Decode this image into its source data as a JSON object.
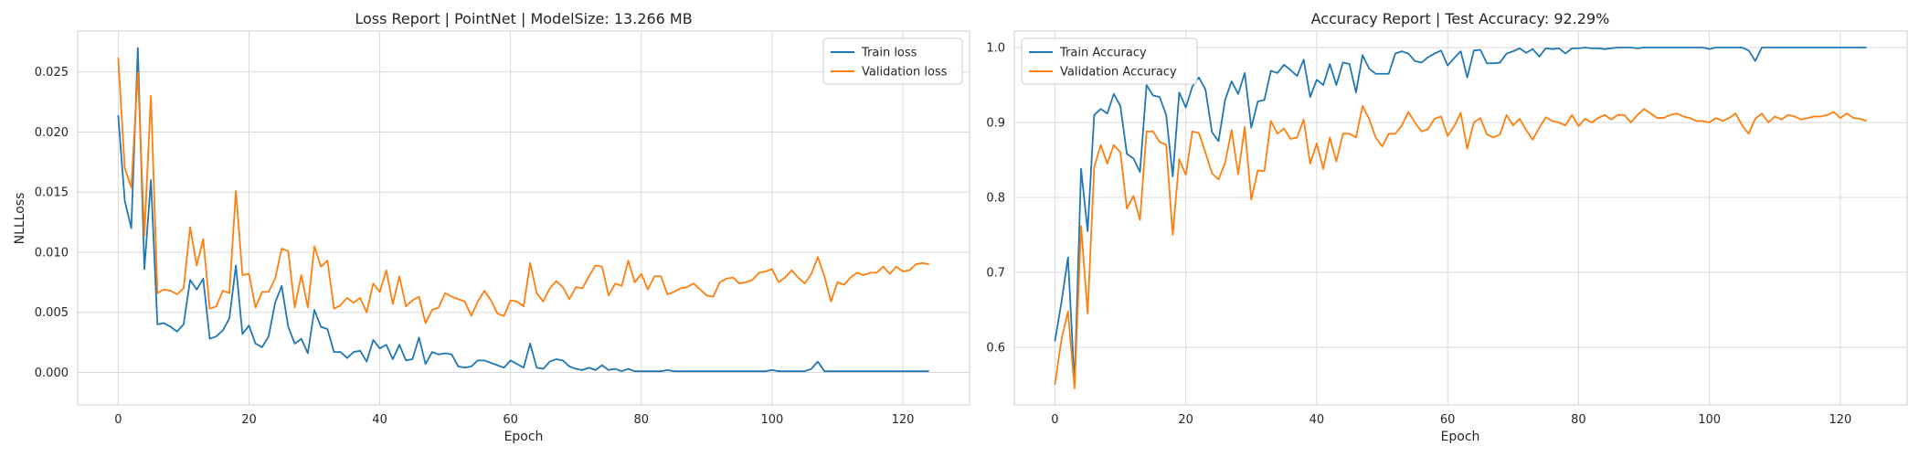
{
  "chart_data": [
    {
      "type": "line",
      "title": "Loss Report | PointNet | ModelSize: 13.266 MB",
      "xlabel": "Epoch",
      "ylabel": "NLLLoss",
      "xlim": [
        -6.2,
        130.2
      ],
      "ylim": [
        -0.0027,
        0.0284
      ],
      "xticks": [
        0,
        20,
        40,
        60,
        80,
        100,
        120
      ],
      "yticks": [
        0.0,
        0.005,
        0.01,
        0.015,
        0.02,
        0.025
      ],
      "ytick_labels": [
        "0.000",
        "0.005",
        "0.010",
        "0.015",
        "0.020",
        "0.025"
      ],
      "grid": true,
      "legend": "top-right",
      "series": [
        {
          "name": "Train loss",
          "color": "#1f77b4",
          "values": [
            0.0214,
            0.0143,
            0.012,
            0.027,
            0.0086,
            0.016,
            0.004,
            0.0041,
            0.0038,
            0.0034,
            0.004,
            0.0077,
            0.0069,
            0.0078,
            0.0028,
            0.003,
            0.0035,
            0.0045,
            0.0089,
            0.0032,
            0.0039,
            0.0024,
            0.0021,
            0.003,
            0.0058,
            0.0072,
            0.0038,
            0.0024,
            0.0028,
            0.0016,
            0.0052,
            0.0038,
            0.0036,
            0.0017,
            0.0017,
            0.0012,
            0.0017,
            0.0018,
            0.0009,
            0.0027,
            0.002,
            0.0023,
            0.0011,
            0.0023,
            0.001,
            0.0011,
            0.0029,
            0.0007,
            0.0017,
            0.0015,
            0.0016,
            0.0015,
            0.0005,
            0.0004,
            0.0005,
            0.001,
            0.001,
            0.0008,
            0.0006,
            0.0004,
            0.001,
            0.0007,
            0.0004,
            0.0024,
            0.0004,
            0.0003,
            0.0009,
            0.0011,
            0.001,
            0.0005,
            0.0003,
            0.0002,
            0.0004,
            0.0002,
            0.0006,
            0.0002,
            0.0003,
            0.0001,
            0.0003,
            0.0001,
            0.0001,
            0.0001,
            0.0001,
            0.0001,
            0.0002,
            0.0001,
            0.0001,
            0.0001,
            0.0001,
            0.0001,
            0.0001,
            0.0001,
            0.0001,
            0.0001,
            0.0001,
            0.0001,
            0.0001,
            0.0001,
            0.0001,
            0.0001,
            0.0002,
            0.0001,
            0.0001,
            0.0001,
            0.0001,
            0.0001,
            0.0003,
            0.0009,
            0.0001,
            0.0001,
            0.0001,
            0.0001,
            0.0001,
            0.0001,
            0.0001,
            0.0001,
            0.0001,
            0.0001,
            0.0001,
            0.0001,
            0.0001,
            0.0001,
            0.0001,
            0.0001,
            0.0001
          ]
        },
        {
          "name": "Validation loss",
          "color": "#ff7f0e",
          "values": [
            0.0262,
            0.017,
            0.0154,
            0.025,
            0.0114,
            0.023,
            0.0066,
            0.0069,
            0.0068,
            0.0065,
            0.007,
            0.0121,
            0.0089,
            0.0111,
            0.0053,
            0.0055,
            0.0068,
            0.0066,
            0.0151,
            0.0081,
            0.0082,
            0.0054,
            0.0067,
            0.0067,
            0.0078,
            0.0103,
            0.0101,
            0.0054,
            0.0081,
            0.0054,
            0.0105,
            0.0088,
            0.0093,
            0.0053,
            0.0056,
            0.0062,
            0.0058,
            0.0062,
            0.005,
            0.0074,
            0.0067,
            0.0085,
            0.0057,
            0.008,
            0.0055,
            0.006,
            0.0063,
            0.0041,
            0.0052,
            0.0054,
            0.0066,
            0.0063,
            0.0061,
            0.0059,
            0.0047,
            0.0059,
            0.0068,
            0.006,
            0.0049,
            0.0047,
            0.006,
            0.0059,
            0.0055,
            0.0091,
            0.0066,
            0.0059,
            0.007,
            0.0076,
            0.0071,
            0.0061,
            0.0071,
            0.007,
            0.008,
            0.0089,
            0.0088,
            0.0064,
            0.0074,
            0.0072,
            0.0093,
            0.0075,
            0.0082,
            0.0069,
            0.008,
            0.008,
            0.0065,
            0.0067,
            0.007,
            0.0071,
            0.0074,
            0.0069,
            0.0064,
            0.0063,
            0.0075,
            0.0078,
            0.0079,
            0.0074,
            0.0075,
            0.0077,
            0.0083,
            0.0084,
            0.0086,
            0.0075,
            0.0079,
            0.0085,
            0.0079,
            0.0074,
            0.0082,
            0.0096,
            0.008,
            0.0059,
            0.0075,
            0.0073,
            0.0079,
            0.0083,
            0.0081,
            0.0083,
            0.0083,
            0.0088,
            0.0082,
            0.0088,
            0.0084,
            0.0085,
            0.009,
            0.0091,
            0.009
          ]
        }
      ]
    },
    {
      "type": "line",
      "title": "Accuracy Report | Test Accuracy: 92.29%",
      "xlabel": "Epoch",
      "ylabel": "",
      "xlim": [
        -6.2,
        130.2
      ],
      "ylim": [
        0.523,
        1.022
      ],
      "xticks": [
        0,
        20,
        40,
        60,
        80,
        100,
        120
      ],
      "yticks": [
        0.6,
        0.7,
        0.8,
        0.9,
        1.0
      ],
      "ytick_labels": [
        "0.6",
        "0.7",
        "0.8",
        "0.9",
        "1.0"
      ],
      "grid": true,
      "legend": "top-left",
      "series": [
        {
          "name": "Train Accuracy",
          "color": "#1f77b4",
          "values": [
            0.608,
            0.66,
            0.72,
            0.55,
            0.838,
            0.755,
            0.91,
            0.918,
            0.912,
            0.938,
            0.922,
            0.858,
            0.852,
            0.834,
            0.95,
            0.936,
            0.934,
            0.91,
            0.828,
            0.94,
            0.92,
            0.948,
            0.96,
            0.944,
            0.887,
            0.875,
            0.93,
            0.955,
            0.938,
            0.966,
            0.893,
            0.928,
            0.93,
            0.969,
            0.966,
            0.977,
            0.97,
            0.962,
            0.984,
            0.934,
            0.957,
            0.95,
            0.978,
            0.95,
            0.98,
            0.978,
            0.94,
            0.99,
            0.972,
            0.965,
            0.965,
            0.965,
            0.992,
            0.995,
            0.992,
            0.982,
            0.98,
            0.987,
            0.992,
            0.996,
            0.976,
            0.986,
            0.995,
            0.96,
            0.996,
            0.997,
            0.979,
            0.979,
            0.98,
            0.992,
            0.995,
            0.999,
            0.993,
            0.998,
            0.988,
            0.999,
            0.998,
            0.999,
            0.992,
            0.999,
            0.999,
            1.0,
            0.999,
            0.999,
            0.998,
            0.999,
            1.0,
            1.0,
            1.0,
            0.999,
            1.0,
            1.0,
            1.0,
            1.0,
            1.0,
            1.0,
            1.0,
            1.0,
            1.0,
            1.0,
            0.998,
            1.0,
            1.0,
            1.0,
            1.0,
            1.0,
            0.996,
            0.982,
            1.0,
            1.0,
            1.0,
            1.0,
            1.0,
            1.0,
            1.0,
            1.0,
            1.0,
            1.0,
            1.0,
            1.0,
            1.0,
            1.0,
            1.0,
            1.0,
            1.0
          ]
        },
        {
          "name": "Validation Accuracy",
          "color": "#ff7f0e",
          "values": [
            0.55,
            0.61,
            0.648,
            0.545,
            0.762,
            0.645,
            0.84,
            0.87,
            0.845,
            0.87,
            0.86,
            0.785,
            0.802,
            0.77,
            0.888,
            0.888,
            0.874,
            0.87,
            0.75,
            0.851,
            0.83,
            0.888,
            0.886,
            0.86,
            0.832,
            0.824,
            0.846,
            0.89,
            0.831,
            0.894,
            0.797,
            0.836,
            0.835,
            0.902,
            0.885,
            0.892,
            0.878,
            0.88,
            0.904,
            0.845,
            0.872,
            0.838,
            0.88,
            0.848,
            0.885,
            0.885,
            0.88,
            0.922,
            0.905,
            0.88,
            0.868,
            0.885,
            0.885,
            0.896,
            0.914,
            0.9,
            0.888,
            0.891,
            0.905,
            0.908,
            0.882,
            0.895,
            0.913,
            0.865,
            0.9,
            0.906,
            0.884,
            0.88,
            0.884,
            0.91,
            0.896,
            0.905,
            0.89,
            0.877,
            0.893,
            0.907,
            0.902,
            0.9,
            0.896,
            0.91,
            0.895,
            0.905,
            0.9,
            0.906,
            0.91,
            0.904,
            0.91,
            0.91,
            0.9,
            0.91,
            0.918,
            0.912,
            0.906,
            0.906,
            0.91,
            0.912,
            0.908,
            0.906,
            0.902,
            0.902,
            0.9,
            0.906,
            0.902,
            0.906,
            0.912,
            0.896,
            0.885,
            0.905,
            0.912,
            0.9,
            0.908,
            0.904,
            0.91,
            0.908,
            0.904,
            0.906,
            0.908,
            0.908,
            0.91,
            0.914,
            0.906,
            0.912,
            0.906,
            0.905,
            0.902
          ]
        }
      ]
    }
  ]
}
